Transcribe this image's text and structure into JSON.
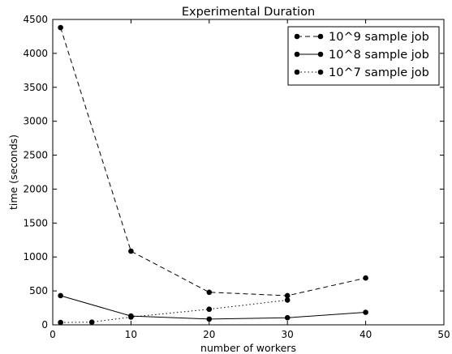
{
  "chart_data": {
    "type": "line",
    "title": "Experimental Duration",
    "xlabel": "number of workers",
    "ylabel": "time (seconds)",
    "xlim": [
      0,
      50
    ],
    "ylim": [
      0,
      4500
    ],
    "xticks": [
      0,
      10,
      20,
      30,
      40,
      50
    ],
    "yticks": [
      0,
      500,
      1000,
      1500,
      2000,
      2500,
      3000,
      3500,
      4000,
      4500
    ],
    "grid": false,
    "legend_position": "top-right",
    "series": [
      {
        "name": "10^9 sample job",
        "line_style": "dashed",
        "color": "#000000",
        "x": [
          1,
          10,
          20,
          30,
          40
        ],
        "y": [
          4380,
          1085,
          480,
          430,
          690
        ]
      },
      {
        "name": "10^8 sample job",
        "line_style": "solid",
        "color": "#000000",
        "x": [
          1,
          10,
          20,
          30,
          40
        ],
        "y": [
          430,
          130,
          85,
          105,
          185
        ]
      },
      {
        "name": "10^7 sample job",
        "line_style": "dotted",
        "color": "#000000",
        "x": [
          1,
          5,
          10,
          20,
          30
        ],
        "y": [
          35,
          40,
          115,
          230,
          365
        ]
      }
    ]
  }
}
